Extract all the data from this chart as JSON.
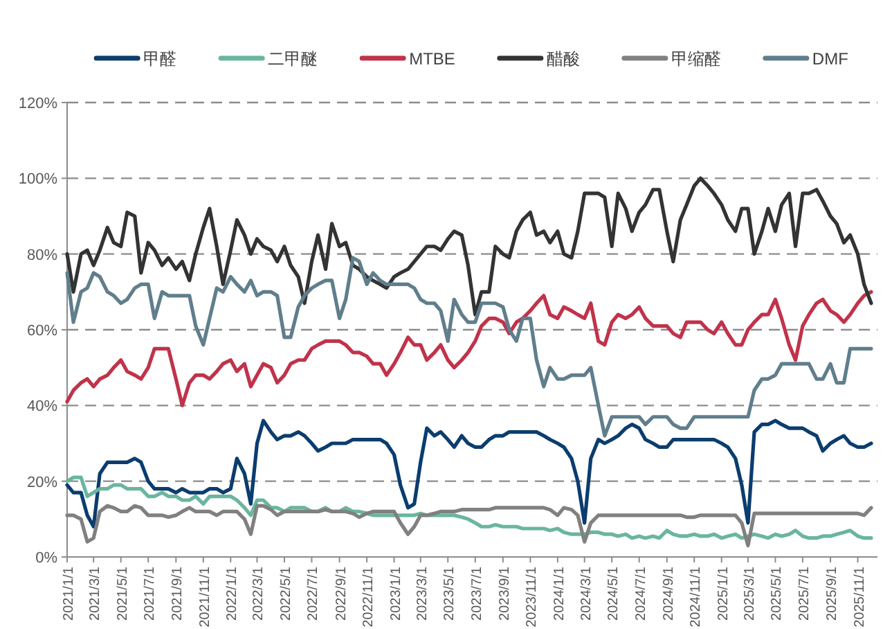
{
  "chart_data": {
    "type": "line",
    "x": [
      "2021-01-01",
      "2021-01-15",
      "2021-02-01",
      "2021-02-15",
      "2021-03-01",
      "2021-03-15",
      "2021-04-01",
      "2021-04-15",
      "2021-05-01",
      "2021-05-15",
      "2021-06-01",
      "2021-06-15",
      "2021-07-01",
      "2021-07-15",
      "2021-08-01",
      "2021-08-15",
      "2021-09-01",
      "2021-09-15",
      "2021-10-01",
      "2021-10-15",
      "2021-11-01",
      "2021-11-15",
      "2021-12-01",
      "2021-12-15",
      "2022-01-01",
      "2022-01-15",
      "2022-02-01",
      "2022-02-15",
      "2022-03-01",
      "2022-03-15",
      "2022-04-01",
      "2022-04-15",
      "2022-05-01",
      "2022-05-15",
      "2022-06-01",
      "2022-06-15",
      "2022-07-01",
      "2022-07-15",
      "2022-08-01",
      "2022-08-15",
      "2022-09-01",
      "2022-09-15",
      "2022-10-01",
      "2022-10-15",
      "2022-11-01",
      "2022-11-15",
      "2022-12-01",
      "2022-12-15",
      "2023-01-01",
      "2023-01-15",
      "2023-02-01",
      "2023-02-15",
      "2023-03-01",
      "2023-03-15",
      "2023-04-01",
      "2023-04-15",
      "2023-05-01",
      "2023-05-15",
      "2023-06-01",
      "2023-06-15",
      "2023-07-01",
      "2023-07-15",
      "2023-08-01",
      "2023-08-15",
      "2023-09-01",
      "2023-09-15",
      "2023-10-01",
      "2023-10-15",
      "2023-11-01",
      "2023-11-15",
      "2023-12-01",
      "2023-12-15",
      "2024-01-01",
      "2024-01-15",
      "2024-02-01",
      "2024-02-15",
      "2024-03-01",
      "2024-03-15",
      "2024-04-01",
      "2024-04-15",
      "2024-05-01",
      "2024-05-15",
      "2024-06-01",
      "2024-06-15",
      "2024-07-01",
      "2024-07-15",
      "2024-08-01",
      "2024-08-15",
      "2024-09-01",
      "2024-09-15",
      "2024-10-01",
      "2024-10-15",
      "2024-11-01",
      "2024-11-15",
      "2024-12-01",
      "2024-12-15",
      "2025-01-01",
      "2025-01-15",
      "2025-02-01",
      "2025-02-15",
      "2025-03-01",
      "2025-03-15",
      "2025-04-01",
      "2025-04-15",
      "2025-05-01",
      "2025-05-15",
      "2025-06-01",
      "2025-06-15",
      "2025-07-01",
      "2025-07-15",
      "2025-08-01",
      "2025-08-15",
      "2025-09-01",
      "2025-09-15",
      "2025-10-01",
      "2025-10-15",
      "2025-11-01",
      "2025-11-15",
      "2025-12-01"
    ],
    "series": [
      {
        "name": "甲醛",
        "color": "#0b3d6e",
        "values": [
          19,
          17,
          17,
          11,
          8,
          22,
          25,
          25,
          25,
          25,
          26,
          25,
          20,
          18,
          18,
          18,
          17,
          18,
          17,
          17,
          17,
          18,
          18,
          17,
          18,
          26,
          22,
          14,
          30,
          36,
          33,
          31,
          32,
          32,
          33,
          32,
          30,
          28,
          29,
          30,
          30,
          30,
          31,
          31,
          31,
          31,
          31,
          30,
          27,
          19,
          13,
          14,
          25,
          34,
          32,
          33,
          31,
          29,
          32,
          30,
          29,
          29,
          31,
          32,
          32,
          33,
          33,
          33,
          33,
          33,
          32,
          31,
          30,
          29,
          26,
          20,
          9,
          26,
          31,
          30,
          31,
          32,
          34,
          35,
          34,
          31,
          30,
          29,
          29,
          31,
          31,
          31,
          31,
          31,
          31,
          31,
          30,
          29,
          26,
          19,
          9,
          33,
          35,
          35,
          36,
          35,
          34,
          34,
          34,
          33,
          32,
          28,
          30,
          31,
          32,
          30,
          29,
          29,
          30
        ]
      },
      {
        "name": "二甲醚",
        "color": "#6ab5a0",
        "values": [
          20,
          21,
          21,
          16,
          17,
          18,
          18,
          19,
          19,
          18,
          18,
          18,
          16,
          16,
          17,
          16,
          16,
          15,
          15,
          16,
          14,
          16,
          16,
          16,
          16,
          15,
          13,
          11,
          15,
          15,
          13,
          13,
          12,
          13,
          13,
          13,
          12,
          12,
          13,
          12,
          12,
          13,
          12,
          12,
          11.5,
          11,
          11,
          11,
          11,
          11,
          11,
          11,
          11.5,
          11,
          11,
          11,
          11,
          11,
          10.5,
          10,
          9,
          8,
          8,
          8.5,
          8,
          8,
          8,
          7.5,
          7.5,
          7.5,
          7.5,
          7,
          7.5,
          6.5,
          6,
          6,
          6,
          6.5,
          6.5,
          6,
          6,
          5.5,
          6,
          5,
          5.5,
          5,
          5.5,
          5,
          7,
          6,
          5.5,
          5.5,
          6,
          5.5,
          5.5,
          6,
          5,
          5.5,
          6,
          5,
          5.5,
          6,
          5.5,
          5,
          6,
          5.5,
          6,
          7,
          5.5,
          5,
          5,
          5.5,
          5.5,
          6,
          6.5,
          7,
          5.5,
          5,
          5
        ]
      },
      {
        "name": "MTBE",
        "color": "#c0334a",
        "values": [
          41,
          44,
          46,
          47,
          45,
          47,
          48,
          50,
          52,
          49,
          48,
          47,
          50,
          55,
          55,
          55,
          47,
          40,
          46,
          48,
          48,
          47,
          49,
          51,
          52,
          49,
          51,
          45,
          48,
          51,
          50,
          46,
          48,
          51,
          52,
          52,
          55,
          56,
          57,
          57,
          57,
          56,
          54,
          54,
          53,
          51,
          51,
          48,
          51,
          54,
          58,
          56,
          56,
          52,
          54,
          56,
          52,
          50,
          52,
          54,
          57,
          61,
          63,
          63,
          62,
          59,
          62,
          63,
          65,
          67,
          69,
          64,
          63,
          66,
          65,
          64,
          63,
          67,
          57,
          56,
          62,
          64,
          63,
          64,
          66,
          63,
          61,
          61,
          61,
          59,
          58,
          62,
          62,
          62,
          60,
          59,
          62,
          59,
          56,
          56,
          60,
          62,
          64,
          64,
          68,
          63,
          56,
          52,
          61,
          64,
          67,
          68,
          65,
          64,
          62,
          64,
          67,
          69,
          70
        ]
      },
      {
        "name": "醋酸",
        "color": "#333333",
        "values": [
          80,
          70,
          80,
          81,
          77,
          81,
          87,
          83,
          82,
          91,
          90,
          75,
          83,
          81,
          77,
          79,
          76,
          78,
          73,
          80,
          87,
          92,
          82,
          72,
          81,
          89,
          85,
          80,
          84,
          82,
          81,
          78,
          82,
          77,
          74,
          67,
          78,
          85,
          76,
          88,
          82,
          83,
          77,
          76,
          74,
          73,
          72,
          71,
          74,
          75,
          76,
          78,
          80,
          82,
          82,
          81,
          84,
          86,
          85,
          77,
          64,
          70,
          70,
          82,
          80,
          79,
          86,
          89,
          91,
          85,
          86,
          83,
          86,
          80,
          79,
          86,
          96,
          96,
          96,
          95,
          82,
          96,
          92,
          86,
          91,
          93,
          97,
          97,
          86,
          78,
          89,
          93,
          98,
          100,
          98,
          96,
          93,
          89,
          86,
          92,
          92,
          80,
          86,
          92,
          86,
          93,
          96,
          82,
          96,
          96,
          97,
          94,
          90,
          88,
          83,
          85,
          80,
          72,
          67
        ]
      },
      {
        "name": "甲缩醛",
        "color": "#808080",
        "values": [
          11,
          11,
          10,
          4,
          5,
          12,
          13.5,
          13,
          12,
          12,
          13.5,
          13,
          11,
          11,
          11,
          10.5,
          11,
          12,
          13,
          12,
          12,
          12,
          11,
          12,
          12,
          12,
          10,
          6,
          13.5,
          13.5,
          12.5,
          11,
          12,
          12,
          12,
          12,
          12,
          12,
          12.5,
          12,
          12,
          12,
          11.5,
          10.5,
          11.5,
          12,
          12,
          12,
          12,
          9,
          6,
          8,
          11,
          11,
          11.5,
          12,
          12,
          12,
          12.5,
          12.5,
          12.5,
          12.5,
          12.5,
          13,
          13,
          13,
          13,
          13,
          13,
          13,
          13,
          12.5,
          11,
          13,
          12.5,
          11,
          4,
          9,
          11,
          11,
          11,
          11,
          11,
          11,
          11,
          11,
          11,
          11,
          11,
          11,
          11,
          10.5,
          10.5,
          11,
          11,
          11,
          11,
          11,
          11,
          9,
          3,
          11.5,
          11.5,
          11.5,
          11.5,
          11.5,
          11.5,
          11.5,
          11.5,
          11.5,
          11.5,
          11.5,
          11.5,
          11.5,
          11.5,
          11.5,
          11.5,
          11,
          13
        ]
      },
      {
        "name": "DMF",
        "color": "#607e8c",
        "values": [
          75,
          62,
          70,
          71,
          75,
          74,
          70,
          69,
          67,
          68,
          71,
          72,
          72,
          63,
          70,
          69,
          69,
          69,
          69,
          61,
          56,
          63,
          71,
          70,
          74,
          72,
          70,
          73,
          69,
          70,
          70,
          69,
          58,
          58,
          66,
          69,
          71,
          72,
          73,
          73,
          63,
          68,
          79,
          78,
          72,
          75,
          73,
          72,
          72,
          72,
          72,
          71,
          68,
          67,
          67,
          65,
          57,
          68,
          64,
          62,
          62,
          67,
          67,
          67,
          66,
          60,
          57,
          63,
          63,
          52,
          45,
          50,
          47,
          47,
          48,
          48,
          48,
          50,
          40,
          32,
          37,
          37,
          37,
          37,
          37,
          35,
          37,
          37,
          37,
          35,
          34,
          34,
          37,
          37,
          37,
          37,
          37,
          37,
          37,
          37,
          37,
          44,
          47,
          47,
          48,
          51,
          51,
          51,
          51,
          51,
          47,
          47,
          51,
          46,
          46,
          55,
          55,
          55,
          55
        ]
      }
    ],
    "xlim": [
      "2021-01-01",
      "2025-12-15"
    ],
    "xticks": [
      {
        "value": "2021-01-01",
        "label": "2021/1/1"
      },
      {
        "value": "2021-03-01",
        "label": "2021/3/1"
      },
      {
        "value": "2021-05-01",
        "label": "2021/5/1"
      },
      {
        "value": "2021-07-01",
        "label": "2021/7/1"
      },
      {
        "value": "2021-09-01",
        "label": "2021/9/1"
      },
      {
        "value": "2021-11-01",
        "label": "2021/11/1"
      },
      {
        "value": "2022-01-01",
        "label": "2022/1/1"
      },
      {
        "value": "2022-03-01",
        "label": "2022/3/1"
      },
      {
        "value": "2022-05-01",
        "label": "2022/5/1"
      },
      {
        "value": "2022-07-01",
        "label": "2022/7/1"
      },
      {
        "value": "2022-09-01",
        "label": "2022/9/1"
      },
      {
        "value": "2022-11-01",
        "label": "2022/11/1"
      },
      {
        "value": "2023-01-01",
        "label": "2023/1/1"
      },
      {
        "value": "2023-03-01",
        "label": "2023/3/1"
      },
      {
        "value": "2023-05-01",
        "label": "2023/5/1"
      },
      {
        "value": "2023-07-01",
        "label": "2023/7/1"
      },
      {
        "value": "2023-09-01",
        "label": "2023/9/1"
      },
      {
        "value": "2023-11-01",
        "label": "2023/11/1"
      },
      {
        "value": "2024-01-01",
        "label": "2024/1/1"
      },
      {
        "value": "2024-03-01",
        "label": "2024/3/1"
      },
      {
        "value": "2024-05-01",
        "label": "2024/5/1"
      },
      {
        "value": "2024-07-01",
        "label": "2024/7/1"
      },
      {
        "value": "2024-09-01",
        "label": "2024/9/1"
      },
      {
        "value": "2024-11-01",
        "label": "2024/11/1"
      },
      {
        "value": "2025-01-01",
        "label": "2025/1/1"
      },
      {
        "value": "2025-03-01",
        "label": "2025/3/1"
      },
      {
        "value": "2025-05-01",
        "label": "2025/5/1"
      },
      {
        "value": "2025-07-01",
        "label": "2025/7/1"
      },
      {
        "value": "2025-09-01",
        "label": "2025/9/1"
      },
      {
        "value": "2025-11-01",
        "label": "2025/11/1"
      }
    ],
    "ylim": [
      0,
      120
    ],
    "yticks": [
      {
        "value": 0,
        "label": "0%"
      },
      {
        "value": 20,
        "label": "20%"
      },
      {
        "value": 40,
        "label": "40%"
      },
      {
        "value": 60,
        "label": "60%"
      },
      {
        "value": 80,
        "label": "80%"
      },
      {
        "value": 100,
        "label": "100%"
      },
      {
        "value": 120,
        "label": "120%"
      }
    ],
    "grid": "y",
    "legend": "top"
  }
}
